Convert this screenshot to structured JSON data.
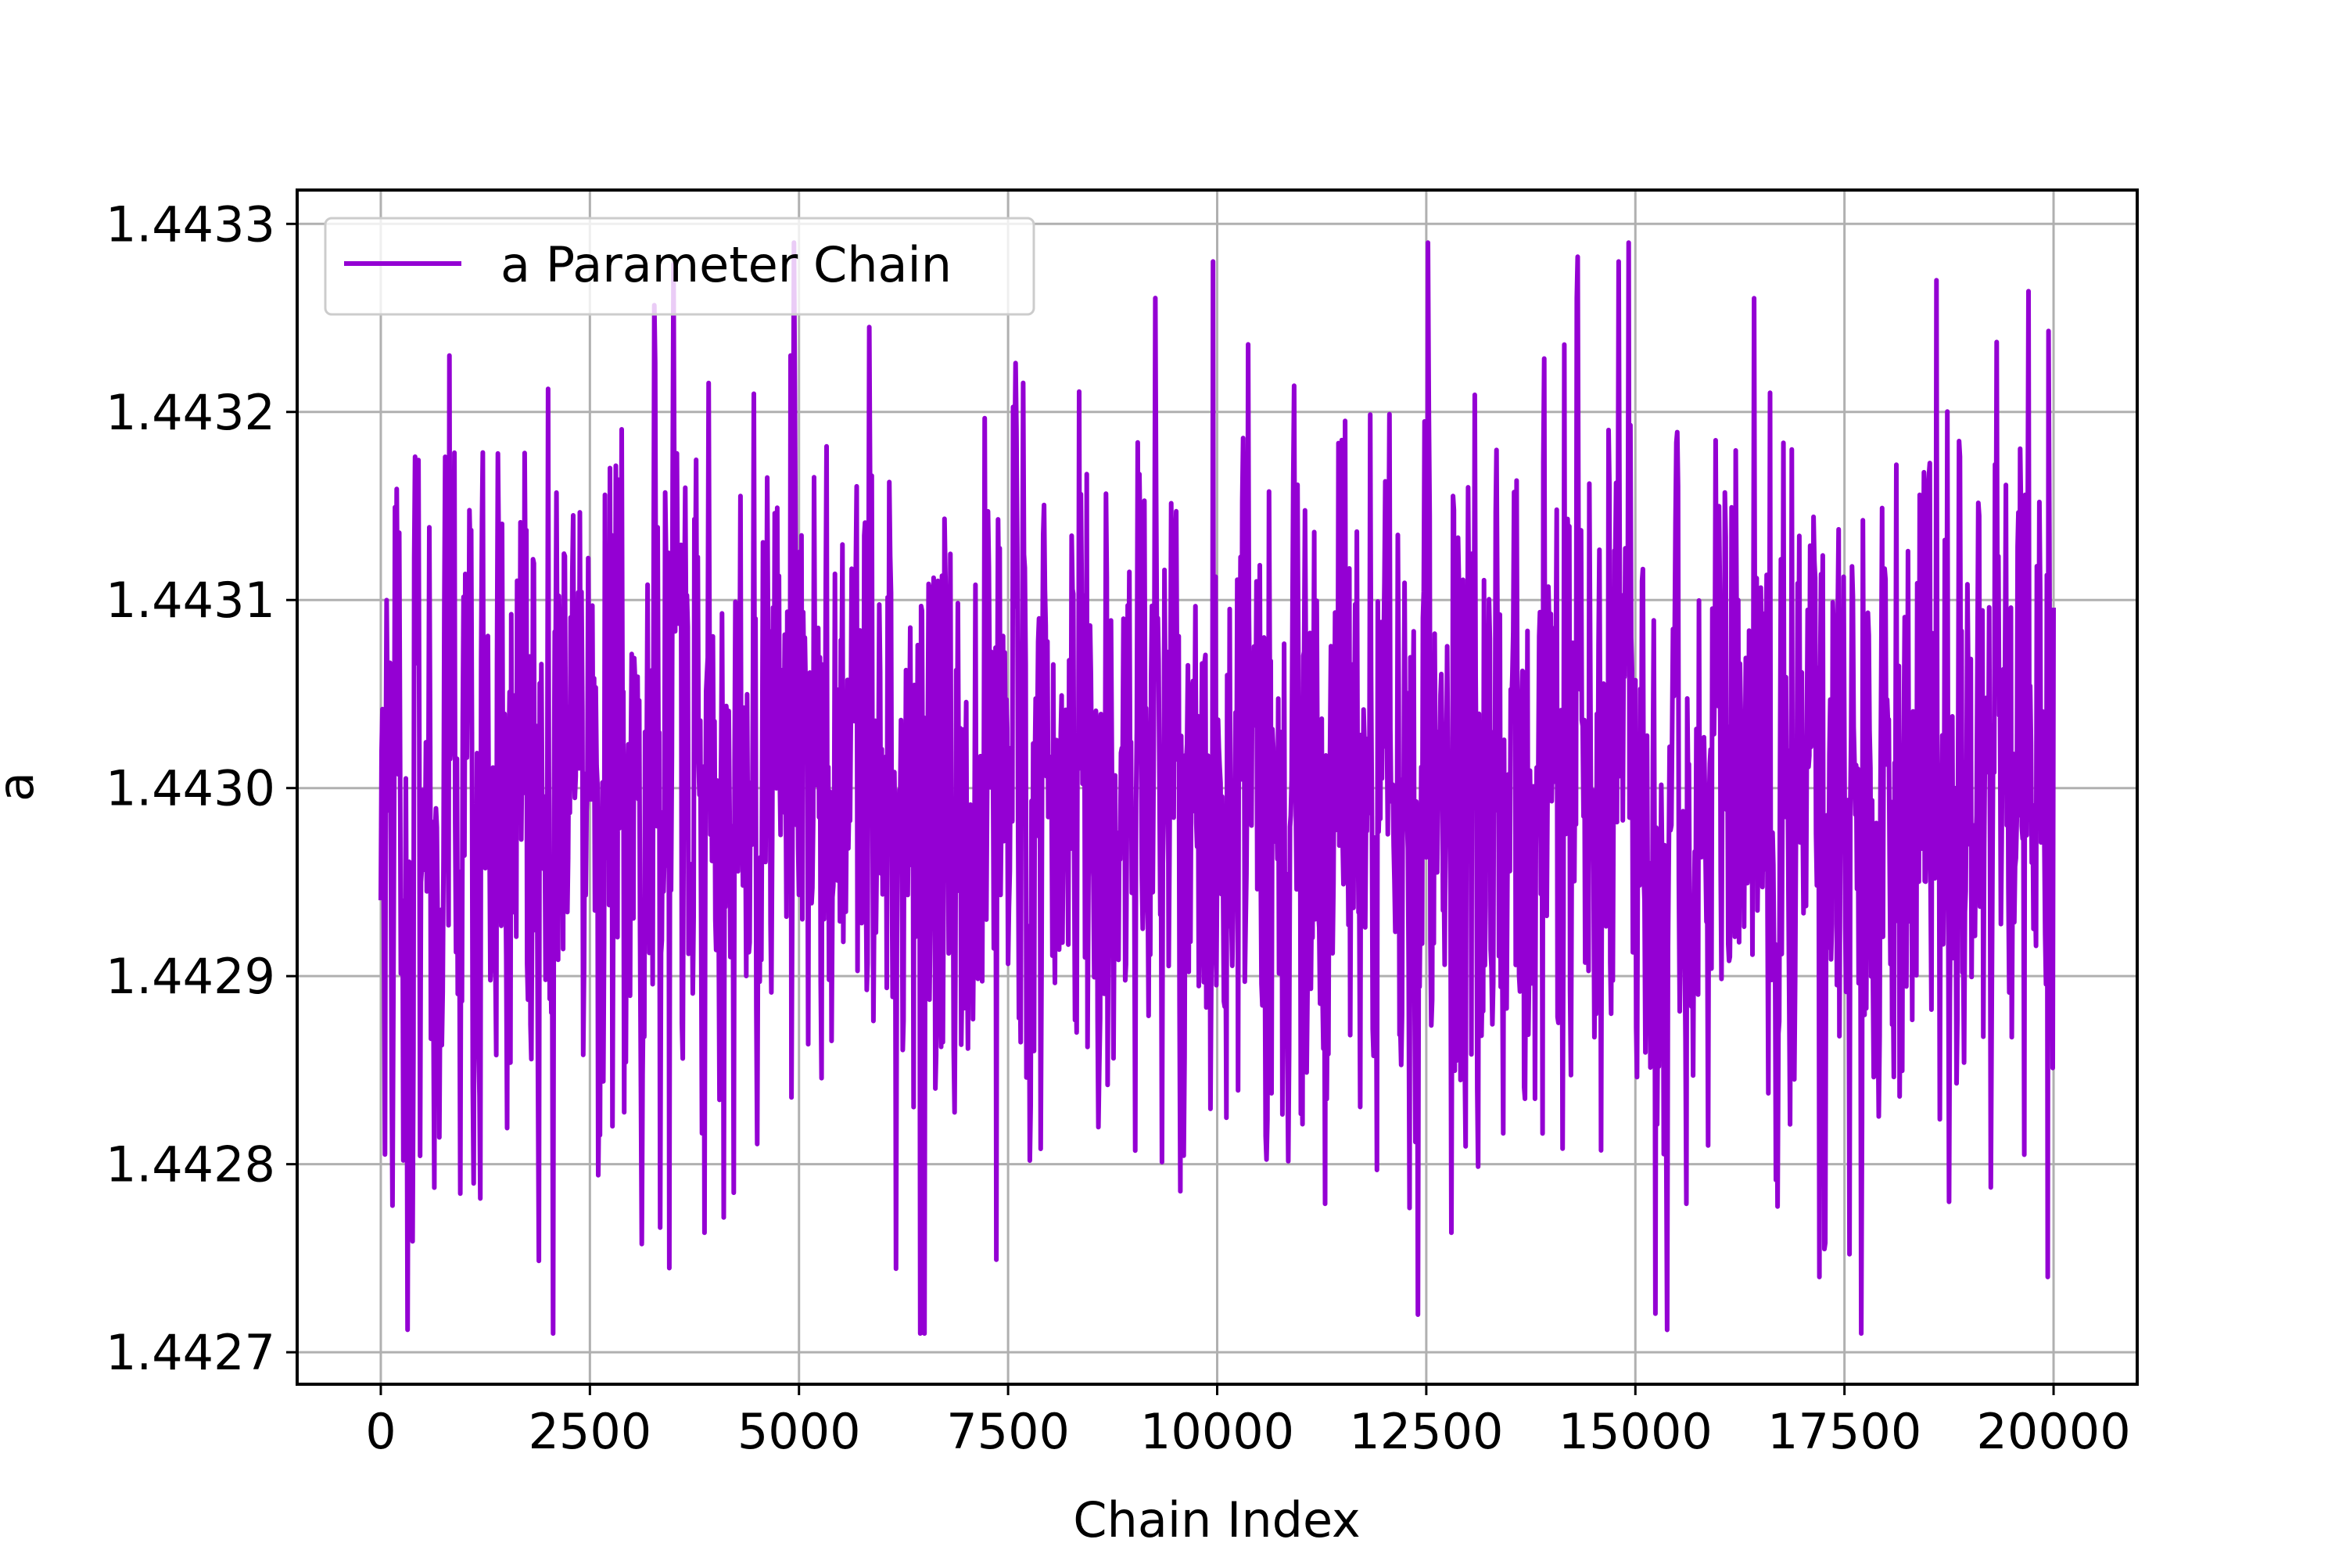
{
  "chart_data": {
    "type": "line",
    "title": "",
    "xlabel": "Chain Index",
    "ylabel": "a",
    "xlim": [
      -1000,
      21000
    ],
    "ylim": [
      1.442683,
      1.443318
    ],
    "grid": true,
    "legend_position": "upper-left",
    "x_ticks": [
      0,
      2500,
      5000,
      7500,
      10000,
      12500,
      15000,
      17500,
      20000
    ],
    "x_tick_labels": [
      "0",
      "2500",
      "5000",
      "7500",
      "10000",
      "12500",
      "15000",
      "17500",
      "20000"
    ],
    "y_ticks": [
      1.4427,
      1.4428,
      1.4429,
      1.443,
      1.4431,
      1.4432,
      1.4433
    ],
    "y_tick_labels": [
      "1.4427",
      "1.4428",
      "1.4429",
      "1.4430",
      "1.4431",
      "1.4432",
      "1.4433"
    ],
    "series": [
      {
        "name": "a Parameter Chain",
        "color": "#9400D3",
        "n_points": 20000,
        "x_start": 0,
        "x_end": 20000,
        "mean": 1.443,
        "std": 9e-05,
        "min": 1.44271,
        "max": 1.44329
      }
    ],
    "extreme_points": [
      {
        "x": 820,
        "y": 1.44323
      },
      {
        "x": 2060,
        "y": 1.44271
      },
      {
        "x": 4900,
        "y": 1.44323
      },
      {
        "x": 6450,
        "y": 1.44271
      },
      {
        "x": 6500,
        "y": 1.44271
      },
      {
        "x": 9950,
        "y": 1.44328
      },
      {
        "x": 12400,
        "y": 1.44272
      },
      {
        "x": 12520,
        "y": 1.44329
      },
      {
        "x": 14800,
        "y": 1.44328
      },
      {
        "x": 17200,
        "y": 1.44274
      },
      {
        "x": 18600,
        "y": 1.44327
      },
      {
        "x": 19930,
        "y": 1.44274
      }
    ]
  }
}
